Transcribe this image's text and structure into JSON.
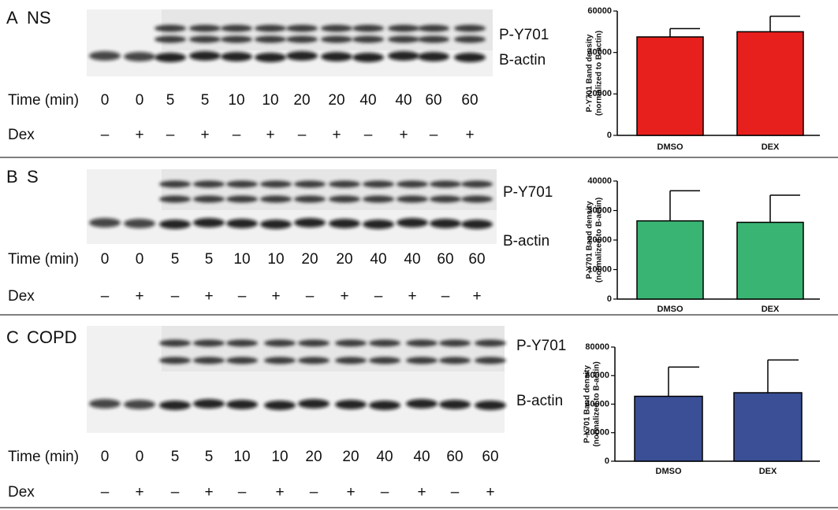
{
  "panels": [
    {
      "label": "A",
      "title": "NS",
      "bands": [
        "P-Y701",
        "B-actin"
      ],
      "time_label": "Time (min)",
      "times": [
        0,
        0,
        5,
        5,
        10,
        10,
        20,
        20,
        40,
        40,
        60,
        60
      ],
      "dex_label": "Dex",
      "dex": [
        "–",
        "+",
        "–",
        "+",
        "–",
        "+",
        "–",
        "+",
        "–",
        "+",
        "–",
        "+"
      ]
    },
    {
      "label": "B",
      "title": "S",
      "bands": [
        "P-Y701",
        "B-actin"
      ],
      "time_label": "Time (min)",
      "times": [
        0,
        0,
        5,
        5,
        10,
        10,
        20,
        20,
        40,
        40,
        60,
        60
      ],
      "dex_label": "Dex",
      "dex": [
        "–",
        "+",
        "–",
        "+",
        "–",
        "+",
        "–",
        "+",
        "–",
        "+",
        "–",
        "+"
      ]
    },
    {
      "label": "C",
      "title": "COPD",
      "bands": [
        "P-Y701",
        "B-actin"
      ],
      "time_label": "Time (min)",
      "times": [
        0,
        0,
        5,
        5,
        10,
        10,
        20,
        20,
        40,
        40,
        60,
        60
      ],
      "dex_label": "Dex",
      "dex": [
        "–",
        "+",
        "–",
        "+",
        "–",
        "+",
        "–",
        "+",
        "–",
        "+",
        "–",
        "+"
      ]
    }
  ],
  "chart_data": [
    {
      "type": "bar",
      "ylabel": [
        "P-Y701 Band density",
        "(normalized to B-actin)"
      ],
      "categories": [
        "DMSO",
        "DEX"
      ],
      "values": [
        47500,
        50000
      ],
      "errors": [
        4000,
        7500
      ],
      "color": "#e8201d",
      "ylim": [
        0,
        60000
      ],
      "yticks": [
        0,
        20000,
        40000,
        60000
      ]
    },
    {
      "type": "bar",
      "ylabel": [
        "P-Y701 Band density",
        "(normalized to B-actin)"
      ],
      "categories": [
        "DMSO",
        "DEX"
      ],
      "values": [
        26500,
        26000
      ],
      "errors": [
        10200,
        9200
      ],
      "color": "#3ab473",
      "ylim": [
        0,
        40000
      ],
      "yticks": [
        0,
        10000,
        20000,
        30000,
        40000
      ]
    },
    {
      "type": "bar",
      "ylabel": [
        "P-Y701 Band density",
        "(normalized to B-actin)"
      ],
      "categories": [
        "DMSO",
        "DEX"
      ],
      "values": [
        45500,
        48000
      ],
      "errors": [
        20500,
        23000
      ],
      "color": "#3a4f96",
      "ylim": [
        0,
        80000
      ],
      "yticks": [
        0,
        20000,
        40000,
        60000,
        80000
      ]
    }
  ]
}
